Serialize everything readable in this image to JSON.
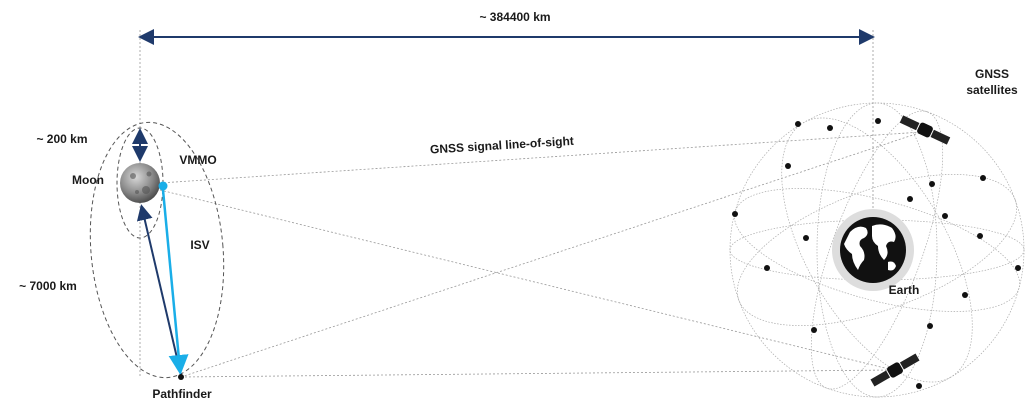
{
  "distance_earth_moon": "~ 384400 km",
  "gnss_label": [
    "GNSS",
    "satellites"
  ],
  "distance_vmmo_altitude": "~ 200 km",
  "moon_label": "Moon",
  "vmmo_label": "VMMO",
  "signal_label": "GNSS signal line-of-sight",
  "isv_label": "ISV",
  "distance_pathfinder": "~ 7000 km",
  "pathfinder_label": "Pathfinder",
  "earth_label": "Earth"
}
